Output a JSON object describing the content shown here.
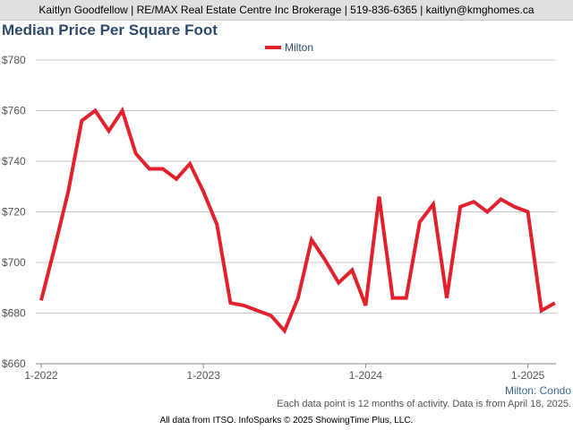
{
  "header": {
    "contact": "Kaitlyn Goodfellow | RE/MAX Real Estate Centre Inc Brokerage | 519-836-6365 | kaitlyn@kmghomes.ca"
  },
  "chart_data": {
    "type": "line",
    "title": "Median Price Per Square Foot",
    "subtitle": "Milton: Condo",
    "xlabel": "",
    "ylabel": "",
    "ylim": [
      660,
      780
    ],
    "yticks": [
      660,
      680,
      700,
      720,
      740,
      760,
      780
    ],
    "ytick_labels": [
      "$660",
      "$680",
      "$700",
      "$720",
      "$740",
      "$760",
      "$780"
    ],
    "xticks": [
      {
        "label": "1-2022",
        "index": 0
      },
      {
        "label": "1-2023",
        "index": 12
      },
      {
        "label": "1-2024",
        "index": 24
      },
      {
        "label": "1-2025",
        "index": 36
      }
    ],
    "grid": true,
    "legend_position": "top-center",
    "color": "#e3212c",
    "series": [
      {
        "name": "Milton",
        "values": [
          685,
          706,
          728,
          756,
          760,
          752,
          760,
          743,
          737,
          737,
          733,
          739,
          728,
          715,
          684,
          683,
          681,
          679,
          673,
          686,
          709,
          701,
          692,
          697,
          683,
          726,
          686,
          686,
          716,
          723,
          686,
          722,
          724,
          720,
          725,
          722,
          720,
          681,
          684
        ]
      }
    ]
  },
  "notes": {
    "data_note": "Each data point is 12 months of activity. Data is from April 18, 2025.",
    "source": "All data from ITSO. InfoSparks © 2025 ShowingTime Plus, LLC."
  }
}
